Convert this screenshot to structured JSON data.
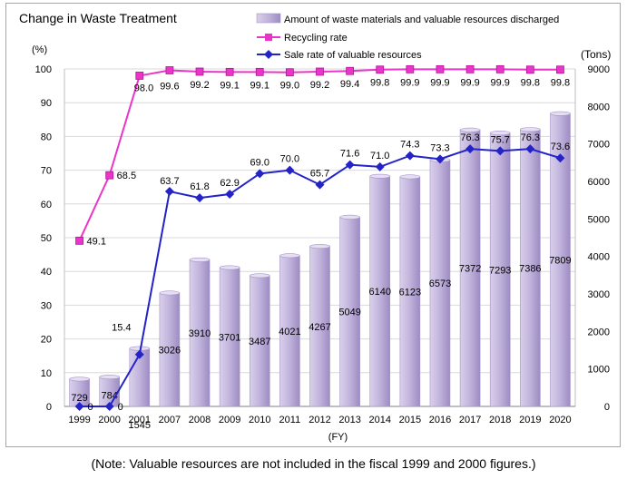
{
  "chart_data": {
    "type": "bar+line",
    "title": "Change in Waste Treatment",
    "xlabel": "(FY)",
    "left_axis_label": "(%)",
    "right_axis_label": "(Tons)",
    "left_ylim": [
      0,
      100
    ],
    "left_ticks": [
      0,
      10,
      20,
      30,
      40,
      50,
      60,
      70,
      80,
      90,
      100
    ],
    "right_ylim": [
      0,
      9000
    ],
    "right_ticks": [
      0,
      1000,
      2000,
      3000,
      4000,
      5000,
      6000,
      7000,
      8000,
      9000
    ],
    "categories": [
      "1999",
      "2000",
      "2001",
      "2007",
      "2008",
      "2009",
      "2010",
      "2011",
      "2012",
      "2013",
      "2014",
      "2015",
      "2016",
      "2017",
      "2018",
      "2019",
      "2020"
    ],
    "legend_position": "top",
    "series": [
      {
        "name": "Amount of waste materials and valuable resources discharged",
        "type": "bar",
        "axis": "right",
        "color": "#b7a7d3",
        "values": [
          729,
          784,
          1545,
          3026,
          3910,
          3701,
          3487,
          4021,
          4267,
          5049,
          6140,
          6123,
          6573,
          7372,
          7293,
          7386,
          7809
        ],
        "labels": [
          "729",
          "784",
          "1545",
          "3026",
          "3910",
          "3701",
          "3487",
          "4021",
          "4267",
          "5049",
          "6140",
          "6123",
          "6573",
          "7372",
          "7293",
          "7386",
          "7809"
        ]
      },
      {
        "name": "Recycling rate",
        "type": "line",
        "axis": "left",
        "color": "#e935c8",
        "marker": "square",
        "values": [
          49.1,
          68.5,
          98.0,
          99.6,
          99.2,
          99.1,
          99.1,
          99.0,
          99.2,
          99.4,
          99.8,
          99.9,
          99.9,
          99.9,
          99.9,
          99.8,
          99.8
        ],
        "labels": [
          "49.1",
          "68.5",
          "98.0",
          "99.6",
          "99.2",
          "99.1",
          "99.1",
          "99.0",
          "99.2",
          "99.4",
          "99.8",
          "99.9",
          "99.9",
          "99.9",
          "99.9",
          "99.8",
          "99.8"
        ]
      },
      {
        "name": "Sale rate of valuable resources",
        "type": "line",
        "axis": "left",
        "color": "#2323c8",
        "marker": "diamond",
        "values": [
          0,
          0,
          15.4,
          63.7,
          61.8,
          62.9,
          69.0,
          70.0,
          65.7,
          71.6,
          71.0,
          74.3,
          73.3,
          76.3,
          75.7,
          76.3,
          73.6
        ],
        "labels": [
          "0",
          "0",
          "15.4",
          "63.7",
          "61.8",
          "62.9",
          "69.0",
          "70.0",
          "65.7",
          "71.6",
          "71.0",
          "74.3",
          "73.3",
          "76.3",
          "75.7",
          "76.3",
          "73.6"
        ]
      }
    ]
  },
  "note": "(Note: Valuable resources are not included in the fiscal 1999 and 2000 figures.)"
}
